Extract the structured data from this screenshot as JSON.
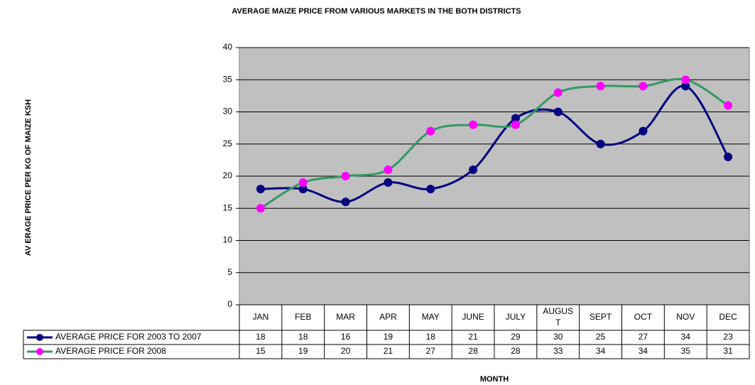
{
  "chart_data": {
    "type": "line",
    "title": "AVERAGE MAIZE PRICE FROM VARIOUS MARKETS IN THE BOTH DISTRICTS",
    "y_label": "AV ERAGE PRICE PER KG OF MAIZE KSH",
    "x_label": "MONTH",
    "categories": [
      "JAN",
      "FEB",
      "MAR",
      "APR",
      "MAY",
      "JUNE",
      "JULY",
      "AUGUST",
      "SEPT",
      "OCT",
      "NOV",
      "DEC"
    ],
    "series": [
      {
        "name": "AVERAGE PRICE FOR 2003 TO 2007",
        "color": "#000080",
        "marker_color": "#000080",
        "values": [
          18,
          18,
          16,
          19,
          18,
          21,
          29,
          30,
          25,
          27,
          34,
          23
        ]
      },
      {
        "name": "AVERAGE PRICE FOR 2008",
        "color": "#339966",
        "marker_color": "#ff00ff",
        "values": [
          15,
          19,
          20,
          21,
          27,
          28,
          28,
          33,
          34,
          34,
          35,
          31
        ]
      }
    ],
    "ylim": [
      0,
      40
    ],
    "yticks": [
      0,
      5,
      10,
      15,
      20,
      25,
      30,
      35,
      40
    ],
    "grid": true,
    "smooth": true,
    "data_table": true
  }
}
